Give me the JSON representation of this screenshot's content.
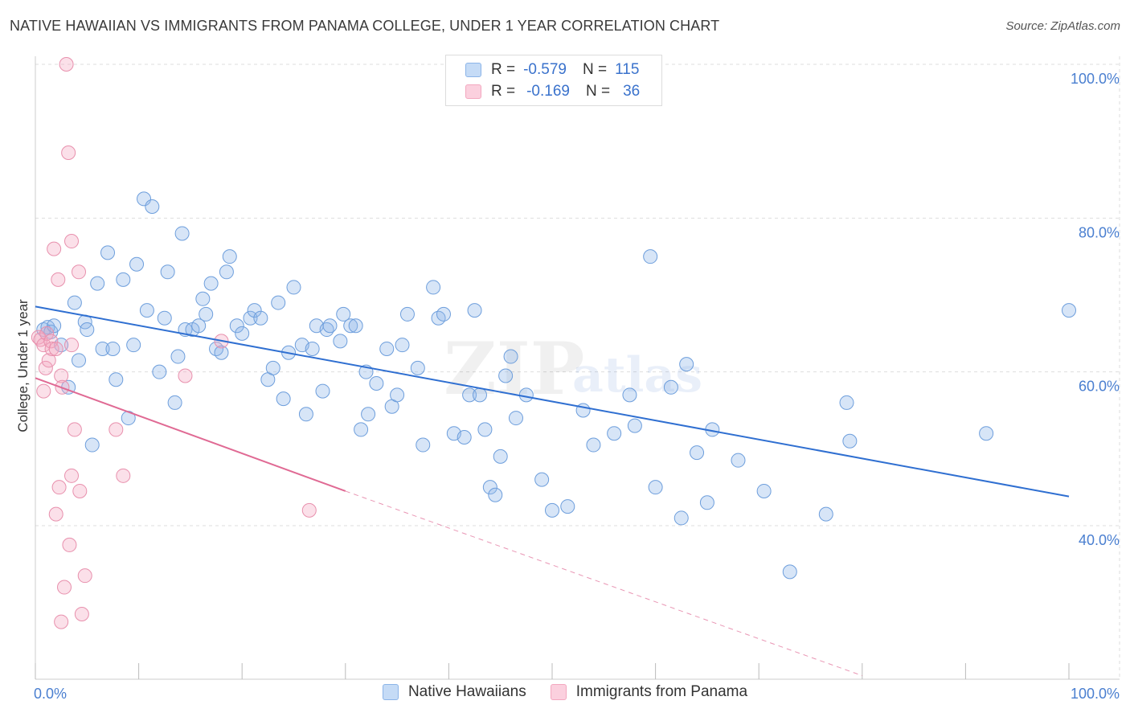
{
  "title": "NATIVE HAWAIIAN VS IMMIGRANTS FROM PANAMA COLLEGE, UNDER 1 YEAR CORRELATION CHART",
  "source": "Source: ZipAtlas.com",
  "watermark": {
    "zip": "ZIP",
    "atlas": "atlas"
  },
  "colors": {
    "blue": "#8bb4e8",
    "blue_line": "#2f6fd1",
    "pink": "#f3a7bf",
    "pink_line": "#e06a94",
    "grid": "#dddddd",
    "tick_text": "#4a7fd0"
  },
  "legend": {
    "rows": [
      {
        "r_label": "R =",
        "r_value": "-0.579",
        "n_label": "N =",
        "n_value": "115"
      },
      {
        "r_label": "R =",
        "r_value": "-0.169",
        "n_label": "N =",
        "n_value": "36"
      }
    ]
  },
  "bottom_legend": {
    "series1": "Native Hawaiians",
    "series2": "Immigrants from Panama"
  },
  "chart_data": {
    "type": "scatter",
    "ylabel": "College, Under 1 year",
    "xlim": [
      0,
      100
    ],
    "ylim": [
      20,
      102
    ],
    "x_tick_labels": [
      "0.0%",
      "100.0%"
    ],
    "y_ticks": [
      {
        "value": 100,
        "label": "100.0%"
      },
      {
        "value": 80,
        "label": "80.0%"
      },
      {
        "value": 60,
        "label": "60.0%"
      },
      {
        "value": 40,
        "label": "40.0%"
      }
    ],
    "series": [
      {
        "name": "Native Hawaiians",
        "color": "#8bb4e8",
        "trend": {
          "x": [
            0,
            100
          ],
          "y": [
            68.5,
            43.8
          ],
          "dashed_from": null
        },
        "points": [
          [
            0.8,
            65.5
          ],
          [
            1.2,
            65.8
          ],
          [
            1.5,
            65.2
          ],
          [
            1.8,
            66
          ],
          [
            2.5,
            63.5
          ],
          [
            3.2,
            58
          ],
          [
            3.8,
            69
          ],
          [
            4.2,
            61.5
          ],
          [
            4.8,
            66.5
          ],
          [
            5,
            65.5
          ],
          [
            5.5,
            50.5
          ],
          [
            6,
            71.5
          ],
          [
            6.5,
            63
          ],
          [
            7,
            75.5
          ],
          [
            7.5,
            63
          ],
          [
            7.8,
            59
          ],
          [
            8.5,
            72
          ],
          [
            9,
            54
          ],
          [
            9.5,
            63.5
          ],
          [
            9.8,
            74
          ],
          [
            10.5,
            82.5
          ],
          [
            10.8,
            68
          ],
          [
            11.3,
            81.5
          ],
          [
            12,
            60
          ],
          [
            12.5,
            67
          ],
          [
            12.8,
            73
          ],
          [
            13.5,
            56
          ],
          [
            13.8,
            62
          ],
          [
            14.2,
            78
          ],
          [
            14.5,
            65.5
          ],
          [
            15.2,
            65.5
          ],
          [
            15.8,
            66
          ],
          [
            16.2,
            69.5
          ],
          [
            16.5,
            67.5
          ],
          [
            17,
            71.5
          ],
          [
            17.5,
            63
          ],
          [
            18,
            62.5
          ],
          [
            18.5,
            73
          ],
          [
            18.8,
            75
          ],
          [
            19.5,
            66
          ],
          [
            20,
            65
          ],
          [
            20.8,
            67
          ],
          [
            21.2,
            68
          ],
          [
            21.8,
            67
          ],
          [
            22.5,
            59
          ],
          [
            23,
            60.5
          ],
          [
            23.5,
            69
          ],
          [
            24,
            56.5
          ],
          [
            24.5,
            62.5
          ],
          [
            25,
            71
          ],
          [
            25.8,
            63.5
          ],
          [
            26.2,
            54.5
          ],
          [
            26.8,
            63
          ],
          [
            27.2,
            66
          ],
          [
            27.8,
            57.5
          ],
          [
            28.2,
            65.5
          ],
          [
            28.5,
            66
          ],
          [
            29.5,
            64
          ],
          [
            29.8,
            67.5
          ],
          [
            30.5,
            66
          ],
          [
            31,
            66
          ],
          [
            31.5,
            52.5
          ],
          [
            32,
            60
          ],
          [
            32.2,
            54.5
          ],
          [
            33,
            58.5
          ],
          [
            34,
            63
          ],
          [
            34.5,
            55.5
          ],
          [
            35,
            57
          ],
          [
            35.5,
            63.5
          ],
          [
            36,
            67.5
          ],
          [
            37,
            60.5
          ],
          [
            37.5,
            50.5
          ],
          [
            38.5,
            71
          ],
          [
            39,
            67
          ],
          [
            39.5,
            67.5
          ],
          [
            40.5,
            52
          ],
          [
            41.5,
            51.5
          ],
          [
            42,
            57
          ],
          [
            42.5,
            68
          ],
          [
            43,
            57
          ],
          [
            43.5,
            52.5
          ],
          [
            44,
            45
          ],
          [
            44.5,
            44
          ],
          [
            45,
            49
          ],
          [
            45.5,
            59.5
          ],
          [
            46,
            62
          ],
          [
            46.5,
            54
          ],
          [
            47.5,
            57
          ],
          [
            49,
            46
          ],
          [
            50,
            42
          ],
          [
            51.5,
            42.5
          ],
          [
            53,
            55
          ],
          [
            54,
            50.5
          ],
          [
            56,
            52
          ],
          [
            57.5,
            57
          ],
          [
            58,
            53
          ],
          [
            59.5,
            75
          ],
          [
            60,
            45
          ],
          [
            61.5,
            58
          ],
          [
            62.5,
            41
          ],
          [
            63,
            61
          ],
          [
            64,
            49.5
          ],
          [
            65,
            43
          ],
          [
            65.5,
            52.5
          ],
          [
            68,
            48.5
          ],
          [
            70.5,
            44.5
          ],
          [
            73,
            34
          ],
          [
            76.5,
            41.5
          ],
          [
            78.5,
            56
          ],
          [
            78.8,
            51
          ],
          [
            92,
            52
          ],
          [
            100,
            68
          ]
        ]
      },
      {
        "name": "Immigrants from Panama",
        "color": "#f3a7bf",
        "trend": {
          "x": [
            0,
            30
          ],
          "y": [
            59.2,
            44.5
          ],
          "dashed_to": [
            80,
            20.5
          ]
        },
        "points": [
          [
            0.3,
            64.5
          ],
          [
            0.5,
            64.2
          ],
          [
            0.8,
            63.5
          ],
          [
            0.8,
            57.5
          ],
          [
            1,
            60.5
          ],
          [
            1.1,
            65
          ],
          [
            1.3,
            61.5
          ],
          [
            1.5,
            64
          ],
          [
            1.6,
            63
          ],
          [
            1.8,
            76
          ],
          [
            2,
            41.5
          ],
          [
            2,
            63
          ],
          [
            2.2,
            72
          ],
          [
            2.3,
            45
          ],
          [
            2.5,
            59.5
          ],
          [
            2.5,
            27.5
          ],
          [
            2.6,
            58
          ],
          [
            2.8,
            32
          ],
          [
            3,
            100
          ],
          [
            3.2,
            88.5
          ],
          [
            3.3,
            37.5
          ],
          [
            3.5,
            77
          ],
          [
            3.5,
            63.5
          ],
          [
            3.5,
            46.5
          ],
          [
            3.8,
            52.5
          ],
          [
            4.2,
            73
          ],
          [
            4.3,
            44.5
          ],
          [
            4.5,
            28.5
          ],
          [
            4.8,
            33.5
          ],
          [
            7.8,
            52.5
          ],
          [
            8.5,
            46.5
          ],
          [
            14.5,
            59.5
          ],
          [
            18,
            64
          ],
          [
            26.5,
            42
          ]
        ]
      }
    ]
  }
}
